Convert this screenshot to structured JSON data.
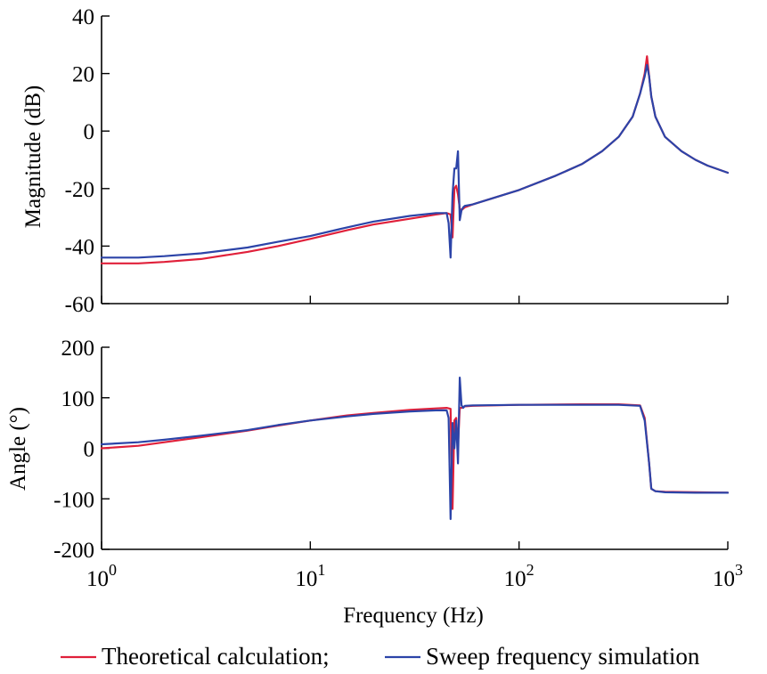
{
  "colors": {
    "theoretical": "#e0203a",
    "sweep": "#2c44a8"
  },
  "legend": {
    "items": [
      {
        "label": "Theoretical calculation;",
        "color": "#e0203a"
      },
      {
        "label": "Sweep frequency simulation",
        "color": "#2c44a8"
      }
    ]
  },
  "chart_data": [
    {
      "type": "line",
      "panel": "magnitude",
      "xscale": "log",
      "xlim": [
        1,
        1000
      ],
      "ylim": [
        -60,
        40
      ],
      "ylabel": "Magnitude (dB)",
      "yticks": [
        -60,
        -40,
        -20,
        0,
        20,
        40
      ],
      "ytick_labels": [
        "-60",
        "-40",
        "-20",
        "0",
        "20",
        "40"
      ],
      "grid": false,
      "series": [
        {
          "name": "Theoretical calculation",
          "x": [
            1,
            1.5,
            2,
            3,
            5,
            7,
            10,
            15,
            20,
            30,
            40,
            45,
            47,
            48,
            49,
            50,
            51,
            52,
            53,
            55,
            60,
            70,
            100,
            150,
            200,
            250,
            300,
            350,
            380,
            400,
            410,
            420,
            430,
            450,
            500,
            600,
            700,
            800,
            1000
          ],
          "y": [
            -46,
            -46,
            -45.5,
            -44.5,
            -42,
            -40,
            -37.5,
            -34.5,
            -32.5,
            -30.5,
            -29,
            -28.5,
            -29,
            -37,
            -20,
            -19,
            -22,
            -27,
            -27.5,
            -26.5,
            -25.5,
            -24,
            -20.5,
            -15.5,
            -11.5,
            -7,
            -2,
            5,
            13,
            20,
            26,
            19,
            12,
            5,
            -2,
            -7,
            -10,
            -12,
            -14.5
          ]
        },
        {
          "name": "Sweep frequency simulation",
          "x": [
            1,
            1.5,
            2,
            3,
            5,
            7,
            10,
            15,
            20,
            30,
            40,
            45,
            46,
            47,
            48,
            49,
            50,
            51,
            52,
            53,
            54,
            55,
            60,
            70,
            100,
            150,
            200,
            250,
            300,
            350,
            380,
            400,
            410,
            420,
            430,
            450,
            500,
            600,
            700,
            800,
            1000
          ],
          "y": [
            -44,
            -44,
            -43.5,
            -42.5,
            -40.5,
            -38.5,
            -36.5,
            -33.5,
            -31.5,
            -29.5,
            -28.5,
            -28.5,
            -32,
            -44,
            -22,
            -13,
            -13,
            -7,
            -31,
            -27.5,
            -26.5,
            -26,
            -25.5,
            -24,
            -20.5,
            -15.5,
            -11.5,
            -7,
            -2,
            5,
            13,
            19,
            23,
            19,
            12,
            5,
            -2,
            -7,
            -10,
            -12,
            -14.5
          ]
        }
      ]
    },
    {
      "type": "line",
      "panel": "angle",
      "xscale": "log",
      "xlim": [
        1,
        1000
      ],
      "ylim": [
        -200,
        200
      ],
      "xlabel": "Frequency (Hz)",
      "ylabel": "Angle (°)",
      "xticks": [
        1,
        10,
        100,
        1000
      ],
      "xtick_labels": [
        {
          "base": "10",
          "exp": "0"
        },
        {
          "base": "10",
          "exp": "1"
        },
        {
          "base": "10",
          "exp": "2"
        },
        {
          "base": "10",
          "exp": "3"
        }
      ],
      "yticks": [
        -200,
        -100,
        0,
        100,
        200
      ],
      "ytick_labels": [
        "-200",
        "-100",
        "0",
        "100",
        "200"
      ],
      "grid": false,
      "series": [
        {
          "name": "Theoretical calculation",
          "x": [
            1,
            1.5,
            2,
            3,
            5,
            7,
            10,
            15,
            20,
            30,
            40,
            45,
            47,
            48,
            49,
            50,
            51,
            52,
            53,
            55,
            60,
            100,
            200,
            300,
            380,
            400,
            420,
            430,
            450,
            500,
            700,
            1000
          ],
          "y": [
            0,
            5,
            12,
            22,
            35,
            45,
            55,
            65,
            70,
            76,
            79,
            80,
            78,
            -120,
            55,
            60,
            5,
            80,
            80,
            83,
            84,
            86,
            87,
            87,
            85,
            60,
            -30,
            -80,
            -85,
            -86,
            -87,
            -88
          ]
        },
        {
          "name": "Sweep frequency simulation",
          "x": [
            1,
            1.5,
            2,
            3,
            5,
            7,
            10,
            15,
            20,
            30,
            40,
            45,
            46,
            47,
            48,
            49,
            50,
            51,
            52,
            53,
            54,
            55,
            60,
            100,
            200,
            300,
            380,
            400,
            420,
            430,
            450,
            500,
            700,
            1000
          ],
          "y": [
            8,
            12,
            17,
            25,
            36,
            46,
            55,
            63,
            68,
            73,
            75,
            75,
            60,
            -140,
            50,
            0,
            55,
            -30,
            140,
            85,
            80,
            84,
            85,
            86,
            86,
            86,
            84,
            55,
            -30,
            -80,
            -85,
            -87,
            -88,
            -88
          ]
        }
      ]
    }
  ]
}
